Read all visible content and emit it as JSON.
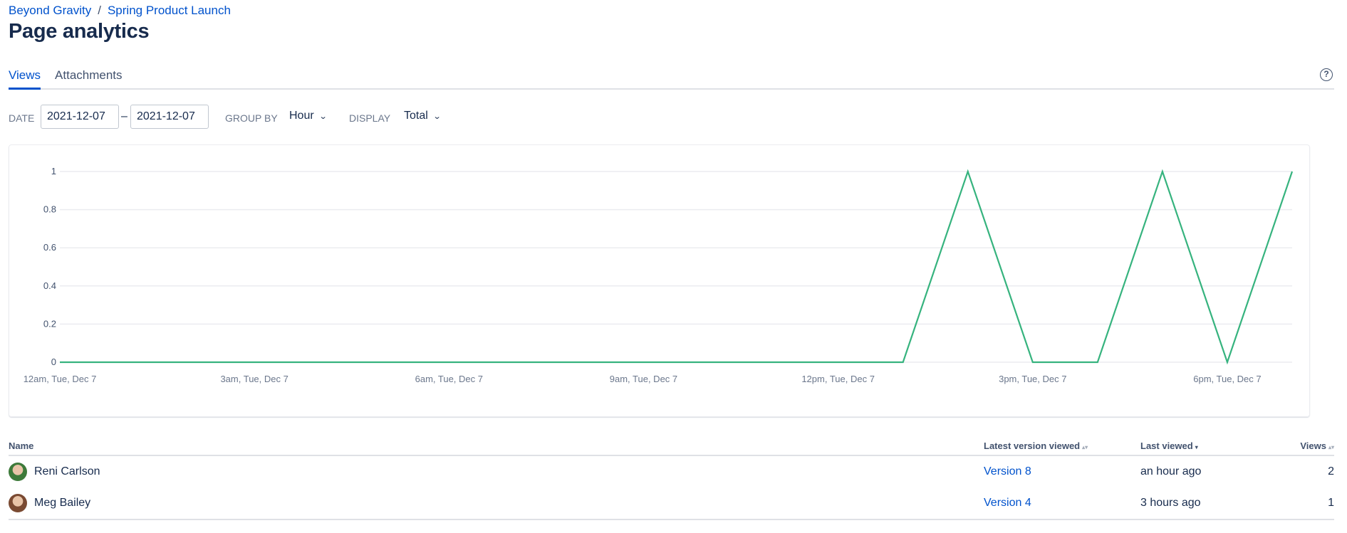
{
  "breadcrumb": [
    {
      "label": "Beyond Gravity"
    },
    {
      "label": "Spring Product Launch"
    }
  ],
  "breadcrumb_separator": "/",
  "title": "Page analytics",
  "tabs": [
    {
      "label": "Views",
      "active": true
    },
    {
      "label": "Attachments",
      "active": false
    }
  ],
  "help_icon": "question-circle-icon",
  "help_glyph": "?",
  "filters": {
    "date_label": "DATE",
    "date_from": "2021-12-07",
    "date_separator": "–",
    "date_to": "2021-12-07",
    "group_by_label": "GROUP BY",
    "group_by_value": "Hour",
    "display_label": "DISPLAY",
    "display_value": "Total"
  },
  "chart_data": {
    "type": "line",
    "x": [
      "12am",
      "1am",
      "2am",
      "3am",
      "4am",
      "5am",
      "6am",
      "7am",
      "8am",
      "9am",
      "10am",
      "11am",
      "12pm",
      "1pm",
      "2pm",
      "3pm",
      "4pm",
      "5pm",
      "6pm",
      "7pm"
    ],
    "series": [
      {
        "values": [
          0,
          0,
          0,
          0,
          0,
          0,
          0,
          0,
          0,
          0,
          0,
          0,
          0,
          0,
          1,
          0,
          0,
          1,
          0,
          1
        ],
        "color": "#36b37e"
      }
    ],
    "xticks": [
      "12am, Tue, Dec 7",
      "3am, Tue, Dec 7",
      "6am, Tue, Dec 7",
      "9am, Tue, Dec 7",
      "12pm, Tue, Dec 7",
      "3pm, Tue, Dec 7",
      "6pm, Tue, Dec 7"
    ],
    "yticks": [
      "0",
      "0.2",
      "0.4",
      "0.6",
      "0.8",
      "1"
    ],
    "ylim": [
      0,
      1
    ],
    "grid": true
  },
  "table": {
    "columns": [
      "Name",
      "Latest version viewed",
      "Last viewed",
      "Views"
    ],
    "rows": [
      {
        "name": "Reni Carlson",
        "version": "Version 8",
        "last_viewed": "an hour ago",
        "views": "2",
        "avatar_color": "#3d7a3a"
      },
      {
        "name": "Meg Bailey",
        "version": "Version 4",
        "last_viewed": "3 hours ago",
        "views": "1",
        "avatar_color": "#7a4a32"
      }
    ]
  }
}
